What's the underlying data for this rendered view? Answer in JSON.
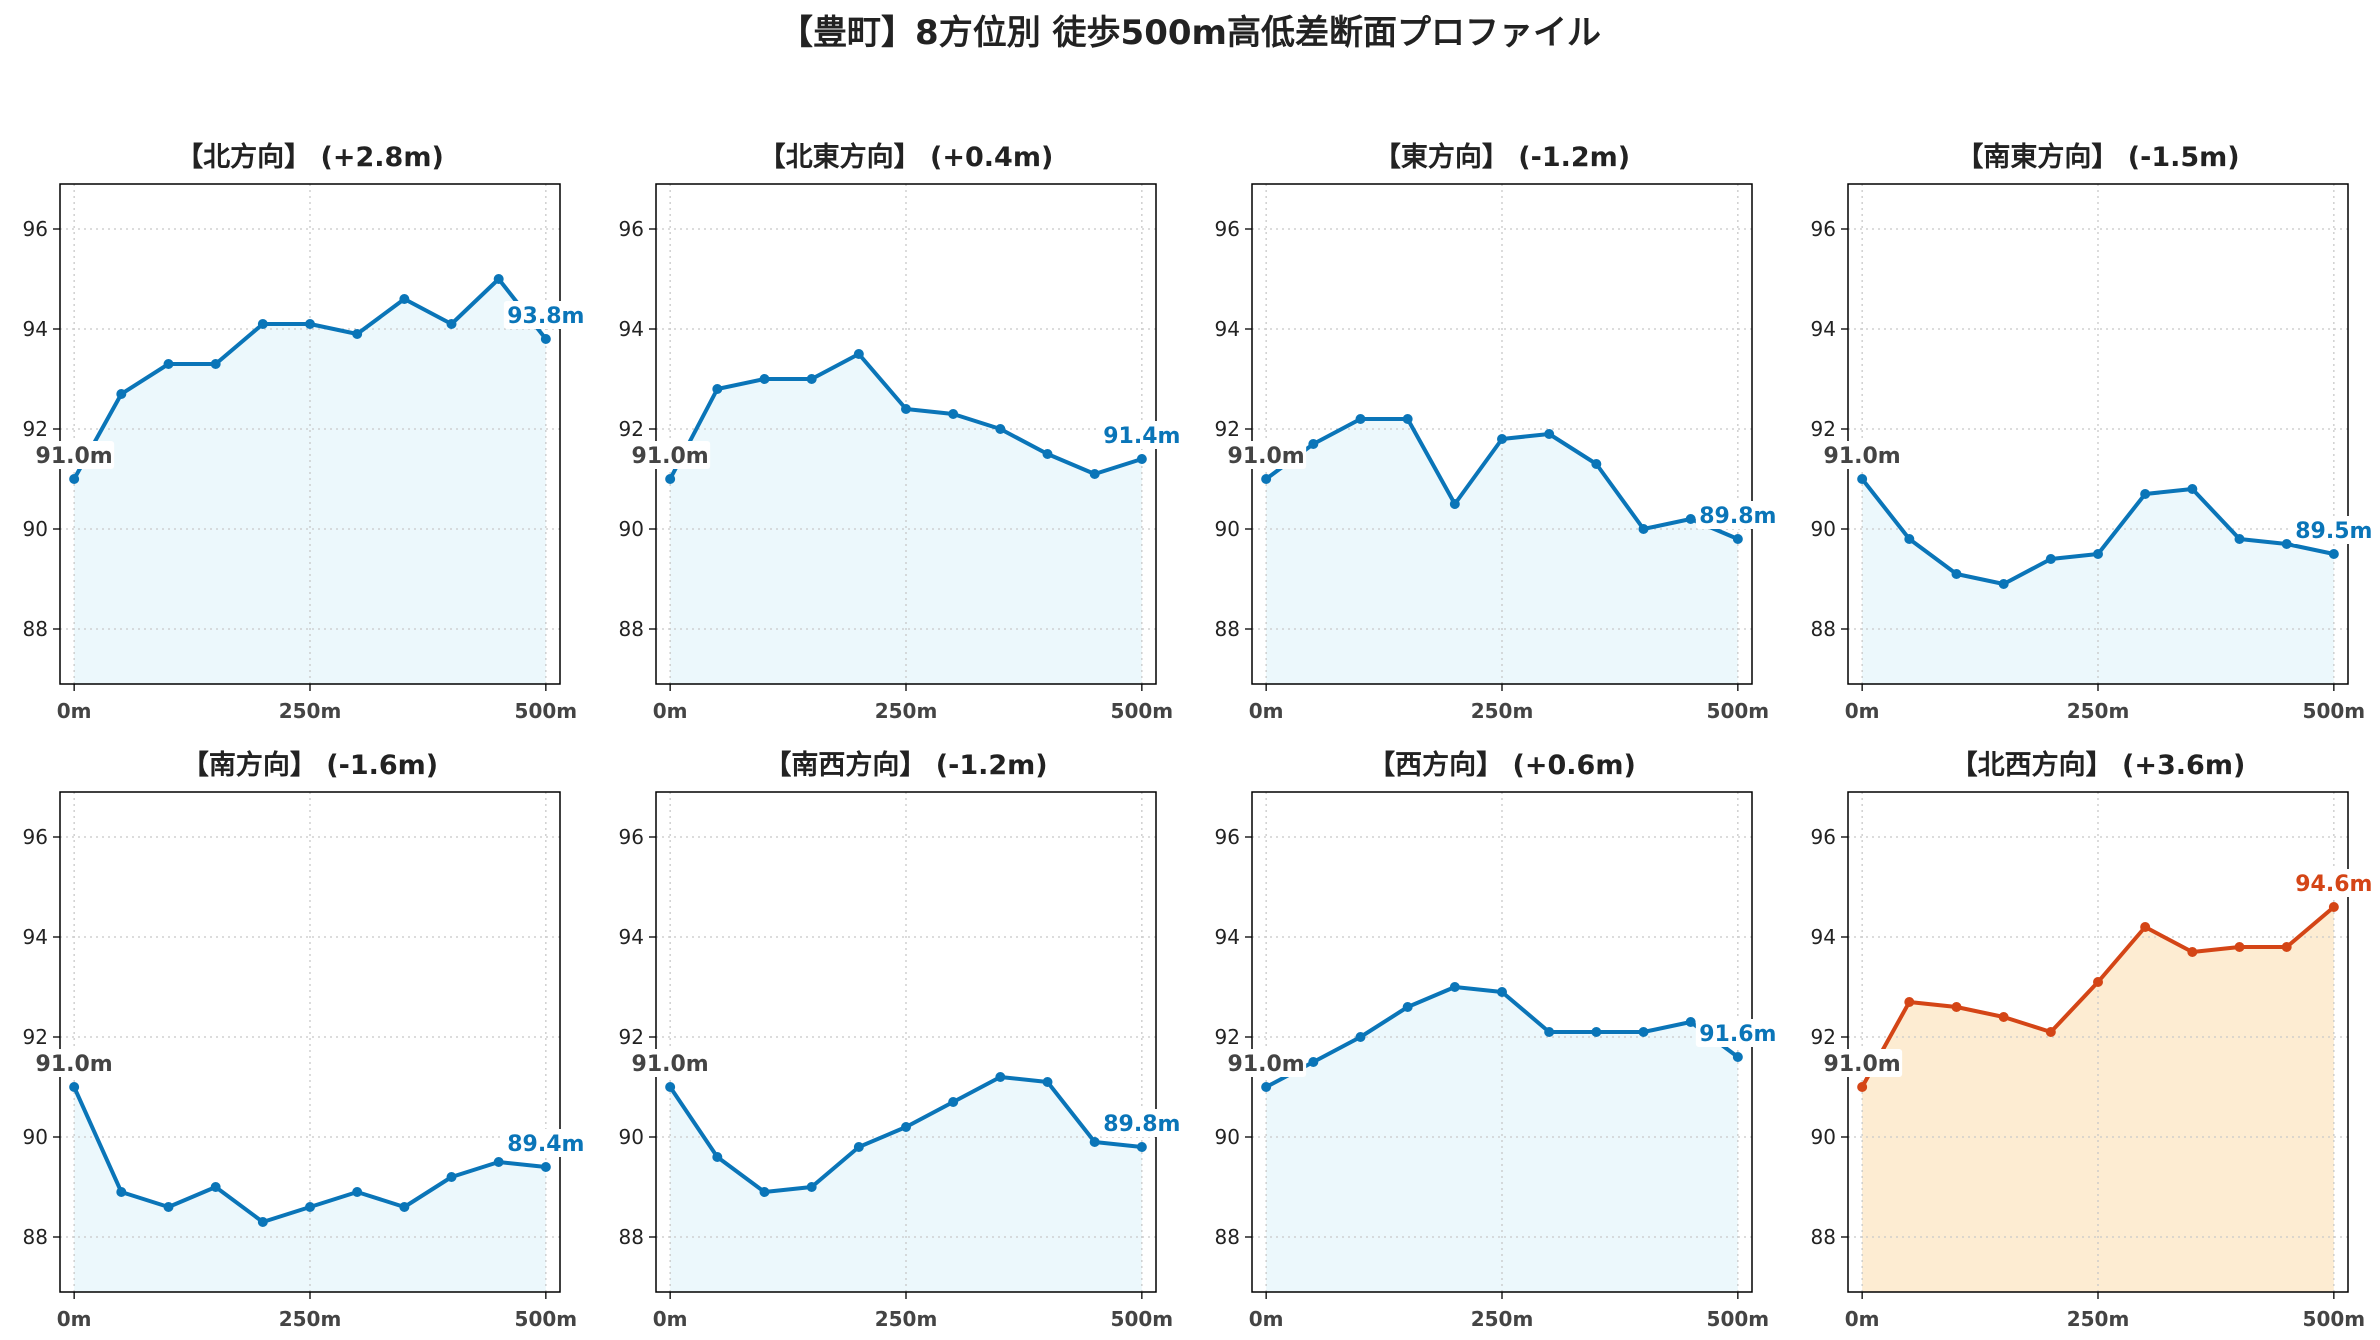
{
  "title": "【豊町】8方位別 徒歩500m高低差断面プロファイル",
  "colors": {
    "normal_line": "#0a75b8",
    "normal_fill": "#ecf8fc",
    "highlight_line": "#d44516",
    "highlight_fill": "#fdecd2",
    "start_label": "#444444"
  },
  "chart_data": [
    {
      "type": "area",
      "title": "【北方向】 (+2.8m)",
      "x": [
        0,
        50,
        100,
        150,
        200,
        250,
        300,
        350,
        400,
        450,
        500
      ],
      "values": [
        91.0,
        92.7,
        93.3,
        93.3,
        94.1,
        94.1,
        93.9,
        94.6,
        94.1,
        95.0,
        93.8
      ],
      "start_label": "91.0m",
      "end_label": "93.8m",
      "highlight": false
    },
    {
      "type": "area",
      "title": "【北東方向】 (+0.4m)",
      "x": [
        0,
        50,
        100,
        150,
        200,
        250,
        300,
        350,
        400,
        450,
        500
      ],
      "values": [
        91.0,
        92.8,
        93.0,
        93.0,
        93.5,
        92.4,
        92.3,
        92.0,
        91.5,
        91.1,
        91.4
      ],
      "start_label": "91.0m",
      "end_label": "91.4m",
      "highlight": false
    },
    {
      "type": "area",
      "title": "【東方向】 (-1.2m)",
      "x": [
        0,
        50,
        100,
        150,
        200,
        250,
        300,
        350,
        400,
        450,
        500
      ],
      "values": [
        91.0,
        91.7,
        92.2,
        92.2,
        90.5,
        91.8,
        91.9,
        91.3,
        90.0,
        90.2,
        89.8
      ],
      "start_label": "91.0m",
      "end_label": "89.8m",
      "highlight": false
    },
    {
      "type": "area",
      "title": "【南東方向】 (-1.5m)",
      "x": [
        0,
        50,
        100,
        150,
        200,
        250,
        300,
        350,
        400,
        450,
        500
      ],
      "values": [
        91.0,
        89.8,
        89.1,
        88.9,
        89.4,
        89.5,
        90.7,
        90.8,
        89.8,
        89.7,
        89.5
      ],
      "start_label": "91.0m",
      "end_label": "89.5m",
      "highlight": false
    },
    {
      "type": "area",
      "title": "【南方向】 (-1.6m)",
      "x": [
        0,
        50,
        100,
        150,
        200,
        250,
        300,
        350,
        400,
        450,
        500
      ],
      "values": [
        91.0,
        88.9,
        88.6,
        89.0,
        88.3,
        88.6,
        88.9,
        88.6,
        89.2,
        89.5,
        89.4
      ],
      "start_label": "91.0m",
      "end_label": "89.4m",
      "highlight": false
    },
    {
      "type": "area",
      "title": "【南西方向】 (-1.2m)",
      "x": [
        0,
        50,
        100,
        150,
        200,
        250,
        300,
        350,
        400,
        450,
        500
      ],
      "values": [
        91.0,
        89.6,
        88.9,
        89.0,
        89.8,
        90.2,
        90.7,
        91.2,
        91.1,
        89.9,
        89.8
      ],
      "start_label": "91.0m",
      "end_label": "89.8m",
      "highlight": false
    },
    {
      "type": "area",
      "title": "【西方向】 (+0.6m)",
      "x": [
        0,
        50,
        100,
        150,
        200,
        250,
        300,
        350,
        400,
        450,
        500
      ],
      "values": [
        91.0,
        91.5,
        92.0,
        92.6,
        93.0,
        92.9,
        92.1,
        92.1,
        92.1,
        92.3,
        91.6
      ],
      "start_label": "91.0m",
      "end_label": "91.6m",
      "highlight": false
    },
    {
      "type": "area",
      "title": "【北西方向】 (+3.6m)",
      "x": [
        0,
        50,
        100,
        150,
        200,
        250,
        300,
        350,
        400,
        450,
        500
      ],
      "values": [
        91.0,
        92.7,
        92.6,
        92.4,
        92.1,
        93.1,
        94.2,
        93.7,
        93.8,
        93.8,
        94.6
      ],
      "start_label": "91.0m",
      "end_label": "94.6m",
      "highlight": true
    }
  ],
  "axes": {
    "ylim": [
      86.9,
      96.9
    ],
    "yticks": [
      88,
      90,
      92,
      94,
      96
    ],
    "xlim": [
      -15,
      515
    ],
    "xticks": [
      0,
      250,
      500
    ],
    "xtick_labels": [
      "0m",
      "250m",
      "500m"
    ],
    "grid": true
  }
}
